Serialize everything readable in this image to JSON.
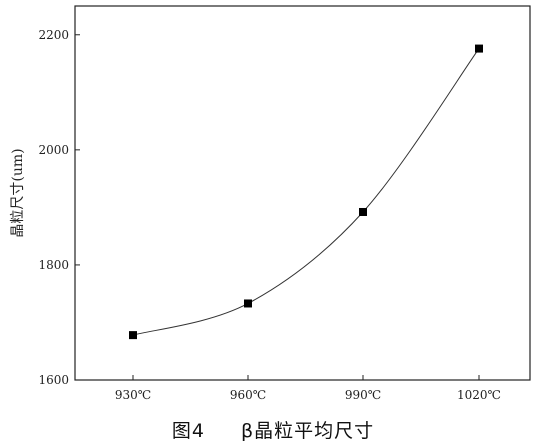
{
  "chart_data": {
    "type": "line",
    "categories": [
      "930℃",
      "960℃",
      "990℃",
      "1020℃"
    ],
    "series": [
      {
        "values": [
          1678,
          1733,
          1892,
          2176
        ],
        "marker": "square"
      }
    ],
    "xlabel": "",
    "ylabel": "晶粒尺寸(um)",
    "ylim": [
      1600,
      2250
    ],
    "yticks": [
      1600,
      1800,
      2000,
      2200
    ],
    "smooth": true,
    "grid": false,
    "line_color": "#333333",
    "marker_color": "#000000"
  },
  "caption": {
    "figure_number": "图4",
    "title": "β晶粒平均尺寸"
  }
}
